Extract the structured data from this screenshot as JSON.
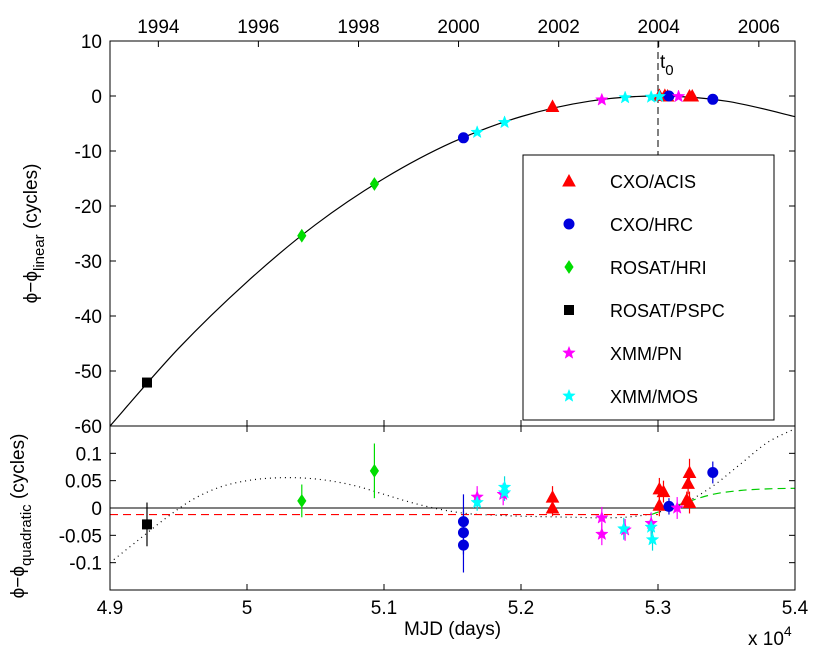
{
  "chart_data": [
    {
      "type": "scatter",
      "panel": "top",
      "xlabel_top": "",
      "top_ticks": [
        "1994",
        "1996",
        "1998",
        "2000",
        "2002",
        "2004",
        "2006"
      ],
      "top_tick_mjd": [
        49353,
        50083,
        50814,
        51544,
        52275,
        53005,
        53736
      ],
      "ylabel_main": "ϕ−ϕ",
      "ylabel_sub": "linear",
      "ylabel_unit": " (cycles)",
      "xlim": [
        49000,
        54000
      ],
      "ylim": [
        -60,
        10
      ],
      "yticks": [
        -60,
        -50,
        -40,
        -30,
        -20,
        -10,
        0,
        10
      ],
      "annotation": {
        "text": "t",
        "sub": "0",
        "x": 53000
      },
      "model_curve": {
        "description": "quadratic fit",
        "peak_x": 53000,
        "peak_y": 0,
        "x": [
          49000,
          49500,
          50000,
          50500,
          51000,
          51500,
          52000,
          52500,
          53000,
          53500,
          54000
        ],
        "y": [
          -60.0,
          -45.9,
          -33.8,
          -23.4,
          -15.0,
          -8.4,
          -3.75,
          -0.94,
          0.0,
          -0.94,
          -3.75
        ]
      },
      "series": [
        {
          "name": "CXO/ACIS",
          "color": "#ff0000",
          "marker": "triangle",
          "points": [
            [
              52230,
              -1.9
            ],
            [
              53010,
              0.1
            ],
            [
              53050,
              0.1
            ],
            [
              53070,
              0.0
            ],
            [
              53230,
              0.0
            ],
            [
              53250,
              0.0
            ]
          ]
        },
        {
          "name": "CXO/HRC",
          "color": "#0000dd",
          "marker": "circle",
          "points": [
            [
              51580,
              -7.6
            ],
            [
              53080,
              0.0
            ],
            [
              53400,
              -0.6
            ]
          ]
        },
        {
          "name": "ROSAT/HRI",
          "color": "#00dd00",
          "marker": "diamond",
          "points": [
            [
              50400,
              -25.4
            ],
            [
              50930,
              -16.0
            ]
          ]
        },
        {
          "name": "ROSAT/PSPC",
          "color": "#000000",
          "marker": "square",
          "points": [
            [
              49270,
              -52.1
            ]
          ]
        },
        {
          "name": "XMM/PN",
          "color": "#ff00ff",
          "marker": "star",
          "points": [
            [
              52590,
              -0.7
            ],
            [
              53150,
              -0.1
            ]
          ]
        },
        {
          "name": "XMM/MOS",
          "color": "#00ffff",
          "marker": "star",
          "points": [
            [
              51680,
              -6.6
            ],
            [
              51880,
              -4.8
            ],
            [
              52760,
              -0.3
            ],
            [
              52950,
              -0.2
            ],
            [
              53010,
              -0.1
            ]
          ]
        }
      ]
    },
    {
      "type": "scatter",
      "panel": "bottom",
      "xlabel": "MJD (days)",
      "xticks": [
        "4.9",
        "5",
        "5.1",
        "5.2",
        "5.3",
        "5.4"
      ],
      "xtick_vals": [
        49000,
        50000,
        51000,
        52000,
        53000,
        54000
      ],
      "x_multiplier": "x 10",
      "x_multiplier_exp": "4",
      "ylabel_main": "ϕ−ϕ",
      "ylabel_sub": "quadratic",
      "ylabel_unit": " (cycles)",
      "xlim": [
        49000,
        54000
      ],
      "ylim": [
        -0.15,
        0.15
      ],
      "yticks": [
        "-0.1",
        "-0.05",
        "0",
        "0.05",
        "0.1"
      ],
      "ytick_vals": [
        -0.1,
        -0.05,
        0,
        0.05,
        0.1
      ],
      "dotted_curve": {
        "x": [
          49000,
          49200,
          49400,
          49600,
          49800,
          50000,
          50200,
          50400,
          50600,
          50800,
          51000,
          51200,
          51400,
          51600,
          51800,
          52000,
          52200,
          52400,
          52600,
          52800,
          53000,
          53200,
          53400,
          53600,
          53800,
          54000
        ],
        "y": [
          -0.1,
          -0.06,
          -0.02,
          0.015,
          0.038,
          0.05,
          0.055,
          0.055,
          0.05,
          0.04,
          0.025,
          0.01,
          -0.002,
          -0.01,
          -0.013,
          -0.015,
          -0.016,
          -0.017,
          -0.018,
          -0.016,
          -0.008,
          0.01,
          0.04,
          0.08,
          0.12,
          0.145
        ]
      },
      "red_dashed": {
        "x": [
          49000,
          53000
        ],
        "y": [
          -0.012,
          -0.012
        ]
      },
      "green_dashed": {
        "x": [
          52950,
          53200,
          53400,
          53600,
          53800,
          54000
        ],
        "y": [
          -0.012,
          0.01,
          0.025,
          0.032,
          0.035,
          0.036
        ]
      },
      "series": [
        {
          "name": "CXO/ACIS",
          "color": "#ff0000",
          "marker": "triangle",
          "points": [
            [
              52230,
              0.02,
              0.02
            ],
            [
              52230,
              0.0,
              0.015
            ],
            [
              53010,
              0.035,
              0.02
            ],
            [
              53010,
              0.005,
              0.02
            ],
            [
              53040,
              0.03,
              0.02
            ],
            [
              53230,
              0.065,
              0.025
            ],
            [
              53220,
              0.045,
              0.02
            ],
            [
              53210,
              0.015,
              0.015
            ],
            [
              53230,
              0.01,
              0.02
            ]
          ]
        },
        {
          "name": "CXO/HRC",
          "color": "#0000dd",
          "marker": "circle",
          "points": [
            [
              51580,
              -0.025,
              0.05
            ],
            [
              51580,
              -0.045,
              0.04
            ],
            [
              51580,
              -0.068,
              0.05
            ],
            [
              53080,
              0.003,
              0.015
            ],
            [
              53400,
              0.065,
              0.02
            ]
          ]
        },
        {
          "name": "ROSAT/HRI",
          "color": "#00dd00",
          "marker": "diamond",
          "points": [
            [
              50400,
              0.013,
              0.03
            ],
            [
              50930,
              0.068,
              0.05
            ]
          ]
        },
        {
          "name": "ROSAT/PSPC",
          "color": "#000000",
          "marker": "square",
          "points": [
            [
              49270,
              -0.03,
              0.04
            ]
          ]
        },
        {
          "name": "XMM/PN",
          "color": "#ff00ff",
          "marker": "star",
          "points": [
            [
              51680,
              0.02,
              0.02
            ],
            [
              51870,
              0.025,
              0.02
            ],
            [
              52590,
              -0.018,
              0.02
            ],
            [
              52590,
              -0.048,
              0.02
            ],
            [
              52760,
              -0.04,
              0.02
            ],
            [
              52950,
              -0.028,
              0.02
            ],
            [
              53140,
              0.0,
              0.02
            ]
          ]
        },
        {
          "name": "XMM/MOS",
          "color": "#00ffff",
          "marker": "star",
          "points": [
            [
              51680,
              0.01,
              0.015
            ],
            [
              51880,
              0.038,
              0.02
            ],
            [
              51880,
              0.028,
              0.015
            ],
            [
              52750,
              -0.038,
              0.02
            ],
            [
              52950,
              -0.035,
              0.02
            ],
            [
              52960,
              -0.058,
              0.02
            ]
          ]
        }
      ]
    }
  ],
  "legend": {
    "placement": "right",
    "items": [
      {
        "label": "CXO/ACIS",
        "color": "#ff0000",
        "marker": "triangle"
      },
      {
        "label": "CXO/HRC",
        "color": "#0000dd",
        "marker": "circle"
      },
      {
        "label": "ROSAT/HRI",
        "color": "#00dd00",
        "marker": "diamond"
      },
      {
        "label": "ROSAT/PSPC",
        "color": "#000000",
        "marker": "square"
      },
      {
        "label": "XMM/PN",
        "color": "#ff00ff",
        "marker": "star"
      },
      {
        "label": "XMM/MOS",
        "color": "#00ffff",
        "marker": "star"
      }
    ]
  }
}
